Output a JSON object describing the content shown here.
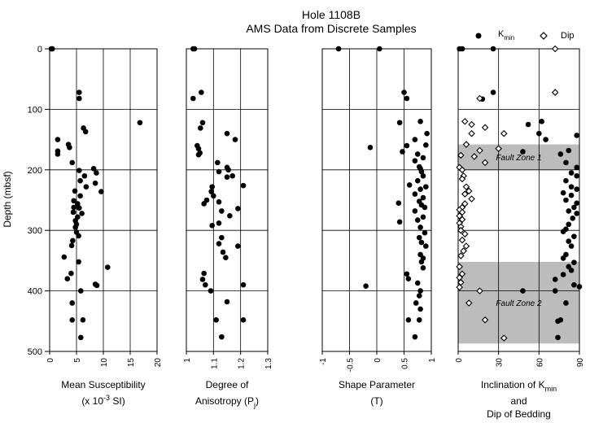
{
  "title": {
    "line1": "Hole 1108B",
    "line2": "AMS Data from Discrete Samples"
  },
  "y_axis": {
    "label": "Depth (mbsf)",
    "lim": [
      0,
      500
    ],
    "ticks": [
      0,
      100,
      200,
      300,
      400,
      500
    ],
    "inverted": true
  },
  "legend": {
    "kmin_base": "K",
    "kmin_sub": "min",
    "dip": "Dip"
  },
  "chart_data": [
    {
      "type": "scatter",
      "xlabel": {
        "base": "Mean Susceptibility",
        "line2_pre": "(x 10",
        "sup": "-3",
        "line2_post": " SI)"
      },
      "xlim": [
        0,
        20
      ],
      "xticks": [
        "0",
        "5",
        "10",
        "15",
        "20"
      ],
      "xtick_values": [
        0,
        5,
        10,
        15,
        20
      ],
      "series": [
        {
          "marker": "filled-circle",
          "points": [
            [
              0.3,
              0
            ],
            [
              0.5,
              0
            ],
            [
              5.5,
              72
            ],
            [
              5.5,
              82
            ],
            [
              16.8,
              122
            ],
            [
              6.3,
              131
            ],
            [
              6.7,
              137
            ],
            [
              1.5,
              150
            ],
            [
              3.5,
              158
            ],
            [
              3.7,
              163
            ],
            [
              1.5,
              169
            ],
            [
              1.5,
              174
            ],
            [
              4.2,
              188
            ],
            [
              8.2,
              198
            ],
            [
              5.5,
              201
            ],
            [
              8.7,
              205
            ],
            [
              6.5,
              210
            ],
            [
              5.7,
              218
            ],
            [
              8.5,
              222
            ],
            [
              6.8,
              228
            ],
            [
              4.7,
              235
            ],
            [
              9.6,
              236
            ],
            [
              5.7,
              243
            ],
            [
              4.5,
              251
            ],
            [
              5.2,
              256
            ],
            [
              4.5,
              262
            ],
            [
              5.5,
              263
            ],
            [
              4.4,
              270
            ],
            [
              6,
              272
            ],
            [
              5.2,
              278
            ],
            [
              4.8,
              284
            ],
            [
              5,
              290
            ],
            [
              4.8,
              295
            ],
            [
              5,
              303
            ],
            [
              5.4,
              309
            ],
            [
              4.3,
              317
            ],
            [
              4.1,
              325
            ],
            [
              2.7,
              344
            ],
            [
              5.4,
              352
            ],
            [
              4,
              371
            ],
            [
              3.3,
              380
            ],
            [
              10.8,
              361
            ],
            [
              5.8,
              400
            ],
            [
              8.5,
              389
            ],
            [
              8.8,
              391
            ],
            [
              4.2,
              420
            ],
            [
              4.2,
              448
            ],
            [
              6.2,
              448
            ],
            [
              5.8,
              477
            ]
          ]
        }
      ]
    },
    {
      "type": "scatter",
      "xlabel": {
        "base": "Degree of",
        "line2_pre": "Anisotropy (P",
        "sub": "j",
        "line2_post": ")"
      },
      "xlim": [
        1,
        1.3
      ],
      "xticks": [
        "1",
        "1.1",
        "1.2",
        "1.3"
      ],
      "xtick_values": [
        1,
        1.1,
        1.2,
        1.3
      ],
      "series": [
        {
          "marker": "filled-circle",
          "points": [
            [
              1.025,
              0
            ],
            [
              1.03,
              0
            ],
            [
              1.055,
              72
            ],
            [
              1.025,
              82
            ],
            [
              1.06,
              122
            ],
            [
              1.052,
              131
            ],
            [
              1.15,
              140
            ],
            [
              1.04,
              160
            ],
            [
              1.045,
              165
            ],
            [
              1.05,
              172
            ],
            [
              1.18,
              150
            ],
            [
              1.045,
              175
            ],
            [
              1.115,
              188
            ],
            [
              1.15,
              196
            ],
            [
              1.155,
              200
            ],
            [
              1.12,
              203
            ],
            [
              1.15,
              212
            ],
            [
              1.17,
              210
            ],
            [
              1.095,
              228
            ],
            [
              1.21,
              226
            ],
            [
              1.092,
              236
            ],
            [
              1.1,
              243
            ],
            [
              1.075,
              250
            ],
            [
              1.065,
              256
            ],
            [
              1.12,
              253
            ],
            [
              1.19,
              264
            ],
            [
              1.13,
              268
            ],
            [
              1.16,
              276
            ],
            [
              1.095,
              292
            ],
            [
              1.12,
              288
            ],
            [
              1.13,
              312
            ],
            [
              1.12,
              322
            ],
            [
              1.135,
              336
            ],
            [
              1.145,
              345
            ],
            [
              1.19,
              326
            ],
            [
              1.065,
              371
            ],
            [
              1.06,
              381
            ],
            [
              1.07,
              390
            ],
            [
              1.09,
              400
            ],
            [
              1.21,
              390
            ],
            [
              1.15,
              418
            ],
            [
              1.11,
              448
            ],
            [
              1.21,
              448
            ],
            [
              1.13,
              476
            ]
          ]
        }
      ]
    },
    {
      "type": "scatter",
      "xlabel": {
        "base": "Shape Parameter",
        "line2_pre": "(T)",
        "line2_post": ""
      },
      "xlim": [
        -1,
        1
      ],
      "xticks": [
        "-1",
        "-0.5",
        "0",
        "0.5",
        "1"
      ],
      "xtick_values": [
        -1,
        -0.5,
        0,
        0.5,
        1
      ],
      "series": [
        {
          "marker": "filled-circle",
          "points": [
            [
              -0.7,
              0
            ],
            [
              0.05,
              0
            ],
            [
              0.5,
              72
            ],
            [
              0.55,
              82
            ],
            [
              0.8,
              120
            ],
            [
              0.42,
              122
            ],
            [
              0.92,
              140
            ],
            [
              0.7,
              150
            ],
            [
              0.9,
              159
            ],
            [
              0.55,
              160
            ],
            [
              -0.12,
              163
            ],
            [
              0.47,
              170
            ],
            [
              0.75,
              174
            ],
            [
              0.85,
              180
            ],
            [
              0.7,
              185
            ],
            [
              0.78,
              195
            ],
            [
              0.8,
              198
            ],
            [
              0.82,
              203
            ],
            [
              0.85,
              210
            ],
            [
              0.75,
              218
            ],
            [
              0.6,
              225
            ],
            [
              0.9,
              228
            ],
            [
              0.8,
              232
            ],
            [
              0.7,
              240
            ],
            [
              0.85,
              246
            ],
            [
              0.78,
              252
            ],
            [
              0.4,
              255
            ],
            [
              0.82,
              258
            ],
            [
              0.88,
              262
            ],
            [
              0.7,
              268
            ],
            [
              0.85,
              278
            ],
            [
              0.75,
              283
            ],
            [
              0.42,
              286
            ],
            [
              0.8,
              295
            ],
            [
              0.88,
              304
            ],
            [
              0.78,
              312
            ],
            [
              0.82,
              320
            ],
            [
              0.9,
              326
            ],
            [
              0.8,
              340
            ],
            [
              0.85,
              346
            ],
            [
              0.82,
              352
            ],
            [
              0.85,
              362
            ],
            [
              0.55,
              372
            ],
            [
              0.58,
              380
            ],
            [
              0.75,
              387
            ],
            [
              -0.2,
              392
            ],
            [
              0.8,
              400
            ],
            [
              0.78,
              408
            ],
            [
              0.72,
              420
            ],
            [
              0.8,
              430
            ],
            [
              0.58,
              448
            ],
            [
              0.78,
              448
            ],
            [
              0.7,
              476
            ]
          ]
        }
      ]
    },
    {
      "type": "scatter",
      "xlabel": {
        "base": "Inclination of K",
        "base_sub": "min",
        "line2_pre": "and",
        "line3": "Dip of Bedding",
        "line2_post": ""
      },
      "xlim": [
        0,
        90
      ],
      "xticks": [
        "0",
        "30",
        "60",
        "90"
      ],
      "xtick_values": [
        0,
        30,
        60,
        90
      ],
      "series": [
        {
          "name": "K min",
          "marker": "filled-circle",
          "points": [
            [
              1,
              0
            ],
            [
              3,
              0
            ],
            [
              26,
              0
            ],
            [
              26,
              72
            ],
            [
              18,
              83
            ],
            [
              62,
              120
            ],
            [
              52,
              125
            ],
            [
              60,
              140
            ],
            [
              88,
              143
            ],
            [
              65,
              150
            ],
            [
              82,
              168
            ],
            [
              48,
              170
            ],
            [
              76,
              174
            ],
            [
              80,
              188
            ],
            [
              88,
              196
            ],
            [
              84,
              205
            ],
            [
              88,
              210
            ],
            [
              80,
              218
            ],
            [
              84,
              228
            ],
            [
              88,
              232
            ],
            [
              78,
              238
            ],
            [
              84,
              242
            ],
            [
              80,
              250
            ],
            [
              88,
              255
            ],
            [
              86,
              262
            ],
            [
              82,
              268
            ],
            [
              88,
              272
            ],
            [
              85,
              280
            ],
            [
              82,
              290
            ],
            [
              80,
              298
            ],
            [
              78,
              302
            ],
            [
              86,
              310
            ],
            [
              82,
              318
            ],
            [
              84,
              326
            ],
            [
              80,
              340
            ],
            [
              78,
              346
            ],
            [
              86,
              353
            ],
            [
              82,
              360
            ],
            [
              84,
              366
            ],
            [
              78,
              373
            ],
            [
              72,
              381
            ],
            [
              86,
              390
            ],
            [
              90,
              393
            ],
            [
              48,
              400
            ],
            [
              72,
              400
            ],
            [
              80,
              420
            ],
            [
              76,
              448
            ],
            [
              74,
              450
            ],
            [
              74,
              477
            ]
          ]
        },
        {
          "name": "Dip",
          "marker": "open-diamond",
          "points": [
            [
              72,
              0
            ],
            [
              72,
              72
            ],
            [
              16,
              82
            ],
            [
              5,
              120
            ],
            [
              10,
              125
            ],
            [
              20,
              130
            ],
            [
              10,
              140
            ],
            [
              34,
              140
            ],
            [
              6,
              158
            ],
            [
              16,
              168
            ],
            [
              30,
              165
            ],
            [
              2,
              176
            ],
            [
              12,
              178
            ],
            [
              20,
              188
            ],
            [
              1,
              196
            ],
            [
              3,
              200
            ],
            [
              4,
              210
            ],
            [
              3,
              215
            ],
            [
              6,
              228
            ],
            [
              8,
              235
            ],
            [
              5,
              240
            ],
            [
              10,
              248
            ],
            [
              5,
              256
            ],
            [
              3,
              262
            ],
            [
              1,
              266
            ],
            [
              3,
              270
            ],
            [
              1,
              276
            ],
            [
              3,
              282
            ],
            [
              1,
              288
            ],
            [
              2,
              294
            ],
            [
              2,
              300
            ],
            [
              5,
              306
            ],
            [
              3,
              316
            ],
            [
              6,
              326
            ],
            [
              4,
              334
            ],
            [
              2,
              342
            ],
            [
              1,
              360
            ],
            [
              3,
              372
            ],
            [
              1,
              378
            ],
            [
              2,
              386
            ],
            [
              1,
              394
            ],
            [
              16,
              400
            ],
            [
              8,
              420
            ],
            [
              20,
              448
            ],
            [
              34,
              478
            ]
          ]
        }
      ],
      "shaded_zones": [
        {
          "label": "Fault Zone 1",
          "y_from": 158,
          "y_to": 200
        },
        {
          "label": "Fault Zone 2",
          "y_from": 352,
          "y_to": 487
        }
      ]
    }
  ]
}
